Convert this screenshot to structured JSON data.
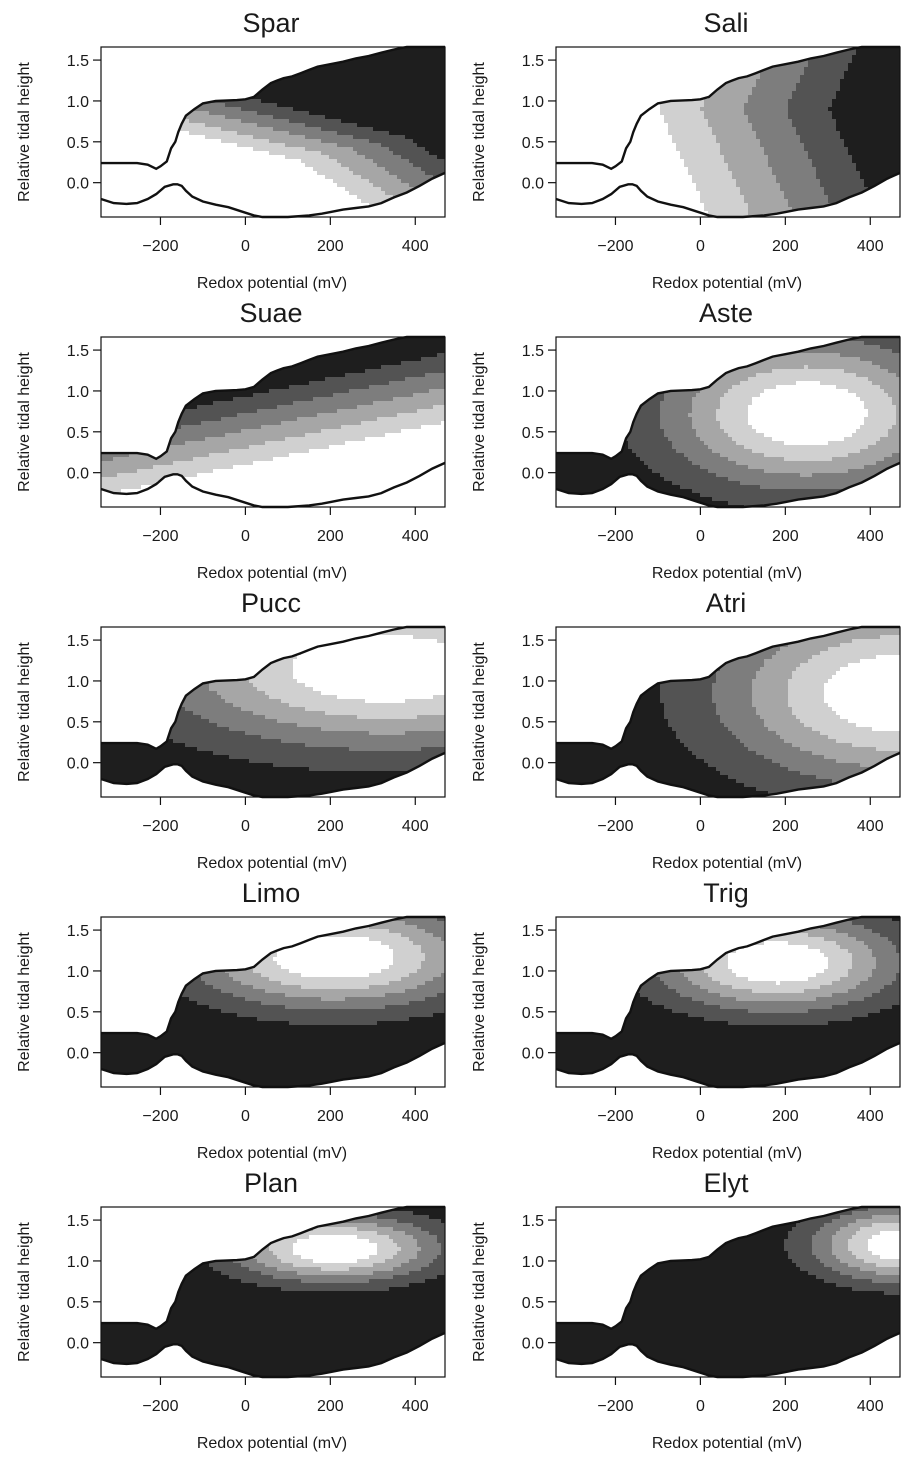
{
  "chart_data": [
    {
      "type": "heatmap",
      "title": "Spar",
      "xlabel": "Redox potential (mV)",
      "ylabel": "Relative tidal height",
      "xlim": [
        -340,
        470
      ],
      "ylim": [
        -0.42,
        1.66
      ],
      "xticks": [
        -200,
        0,
        200,
        400
      ],
      "yticks": [
        0.0,
        0.5,
        1.0,
        1.5
      ],
      "peak": {
        "x": 80,
        "y": 0.35
      },
      "value_trend": "lowest near x=80, y=0.35; increasing toward upper right",
      "shade_bands": [
        "#ffffff",
        "#d0d0d0",
        "#a6a6a6",
        "#7d7d7d",
        "#535353",
        "#1e1e1e"
      ]
    },
    {
      "type": "heatmap",
      "title": "Sali",
      "xlabel": "Redox potential (mV)",
      "ylabel": "Relative tidal height",
      "xlim": [
        -340,
        470
      ],
      "ylim": [
        -0.42,
        1.66
      ],
      "xticks": [
        -200,
        0,
        200,
        400
      ],
      "yticks": [
        0.0,
        0.5,
        1.0,
        1.5
      ],
      "peak": {
        "x": -50,
        "y": 0.1
      },
      "value_trend": "lowest at low redox; darkest at high redox, y~0.9",
      "shade_bands": [
        "#ffffff",
        "#d0d0d0",
        "#a6a6a6",
        "#7d7d7d",
        "#535353",
        "#1e1e1e"
      ]
    },
    {
      "type": "heatmap",
      "title": "Suae",
      "xlabel": "Redox potential (mV)",
      "ylabel": "Relative tidal height",
      "xlim": [
        -340,
        470
      ],
      "ylim": [
        -0.42,
        1.66
      ],
      "xticks": [
        -200,
        0,
        200,
        400
      ],
      "yticks": [
        0.0,
        0.5,
        1.0,
        1.5
      ],
      "peak": {
        "x": 250,
        "y": -0.1
      },
      "value_trend": "lightest at lower right; darkest at top",
      "shade_bands": [
        "#ffffff",
        "#d0d0d0",
        "#a6a6a6",
        "#7d7d7d",
        "#535353",
        "#1e1e1e"
      ]
    },
    {
      "type": "heatmap",
      "title": "Aste",
      "xlabel": "Redox potential (mV)",
      "ylabel": "Relative tidal height",
      "xlim": [
        -340,
        470
      ],
      "ylim": [
        -0.42,
        1.66
      ],
      "xticks": [
        -200,
        0,
        200,
        400
      ],
      "yticks": [
        0.0,
        0.5,
        1.0,
        1.5
      ],
      "peak": {
        "x": 250,
        "y": 0.7
      },
      "value_trend": "lightest around x=250, y=0.7; darkest at low redox and low height",
      "shade_bands": [
        "#1e1e1e",
        "#535353",
        "#7d7d7d",
        "#a6a6a6",
        "#d0d0d0",
        "#ffffff"
      ]
    },
    {
      "type": "heatmap",
      "title": "Pucc",
      "xlabel": "Redox potential (mV)",
      "ylabel": "Relative tidal height",
      "xlim": [
        -340,
        470
      ],
      "ylim": [
        -0.42,
        1.66
      ],
      "xticks": [
        -200,
        0,
        200,
        400
      ],
      "yticks": [
        0.0,
        0.5,
        1.0,
        1.5
      ],
      "peak": {
        "x": 280,
        "y": 1.25
      },
      "value_trend": "lightest upper right; dark below y~0.2",
      "shade_bands": [
        "#1e1e1e",
        "#535353",
        "#7d7d7d",
        "#a6a6a6",
        "#d0d0d0",
        "#ffffff"
      ]
    },
    {
      "type": "heatmap",
      "title": "Atri",
      "xlabel": "Redox potential (mV)",
      "ylabel": "Relative tidal height",
      "xlim": [
        -340,
        470
      ],
      "ylim": [
        -0.42,
        1.66
      ],
      "xticks": [
        -200,
        0,
        200,
        400
      ],
      "yticks": [
        0.0,
        0.5,
        1.0,
        1.5
      ],
      "peak": {
        "x": 470,
        "y": 0.85
      },
      "value_trend": "lightest at far right, y~0.85; dark at low redox",
      "shade_bands": [
        "#1e1e1e",
        "#535353",
        "#7d7d7d",
        "#a6a6a6",
        "#d0d0d0",
        "#ffffff"
      ]
    },
    {
      "type": "heatmap",
      "title": "Limo",
      "xlabel": "Redox potential (mV)",
      "ylabel": "Relative tidal height",
      "xlim": [
        -340,
        470
      ],
      "ylim": [
        -0.42,
        1.66
      ],
      "xticks": [
        -200,
        0,
        200,
        400
      ],
      "yticks": [
        0.0,
        0.5,
        1.0,
        1.5
      ],
      "peak": {
        "x": 200,
        "y": 1.15
      },
      "value_trend": "lightest around x=200, y=1.15; dark below y~0.6",
      "shade_bands": [
        "#1e1e1e",
        "#535353",
        "#7d7d7d",
        "#a6a6a6",
        "#d0d0d0",
        "#ffffff"
      ]
    },
    {
      "type": "heatmap",
      "title": "Trig",
      "xlabel": "Redox potential (mV)",
      "ylabel": "Relative tidal height",
      "xlim": [
        -340,
        470
      ],
      "ylim": [
        -0.42,
        1.66
      ],
      "xticks": [
        -200,
        0,
        200,
        400
      ],
      "yticks": [
        0.0,
        0.5,
        1.0,
        1.5
      ],
      "peak": {
        "x": 170,
        "y": 1.1
      },
      "value_trend": "lightest around x=170, y=1.1; dark below y~0.6",
      "shade_bands": [
        "#1e1e1e",
        "#535353",
        "#7d7d7d",
        "#a6a6a6",
        "#d0d0d0",
        "#ffffff"
      ]
    },
    {
      "type": "heatmap",
      "title": "Plan",
      "xlabel": "Redox potential (mV)",
      "ylabel": "Relative tidal height",
      "xlim": [
        -340,
        470
      ],
      "ylim": [
        -0.42,
        1.66
      ],
      "xticks": [
        -200,
        0,
        200,
        400
      ],
      "yticks": [
        0.0,
        0.5,
        1.0,
        1.5
      ],
      "peak": {
        "x": 210,
        "y": 1.15
      },
      "value_trend": "lightest around x=210, y=1.15; dark below y~0.85",
      "shade_bands": [
        "#1e1e1e",
        "#535353",
        "#7d7d7d",
        "#a6a6a6",
        "#d0d0d0",
        "#ffffff"
      ]
    },
    {
      "type": "heatmap",
      "title": "Elyt",
      "xlabel": "Redox potential (mV)",
      "ylabel": "Relative tidal height",
      "xlim": [
        -340,
        470
      ],
      "ylim": [
        -0.42,
        1.66
      ],
      "xticks": [
        -200,
        0,
        200,
        400
      ],
      "yticks": [
        0.0,
        0.5,
        1.0,
        1.5
      ],
      "peak": {
        "x": 470,
        "y": 1.2
      },
      "value_trend": "lightest at far upper right; dark elsewhere",
      "shade_bands": [
        "#1e1e1e",
        "#535353",
        "#7d7d7d",
        "#a6a6a6",
        "#d0d0d0",
        "#ffffff"
      ]
    }
  ]
}
